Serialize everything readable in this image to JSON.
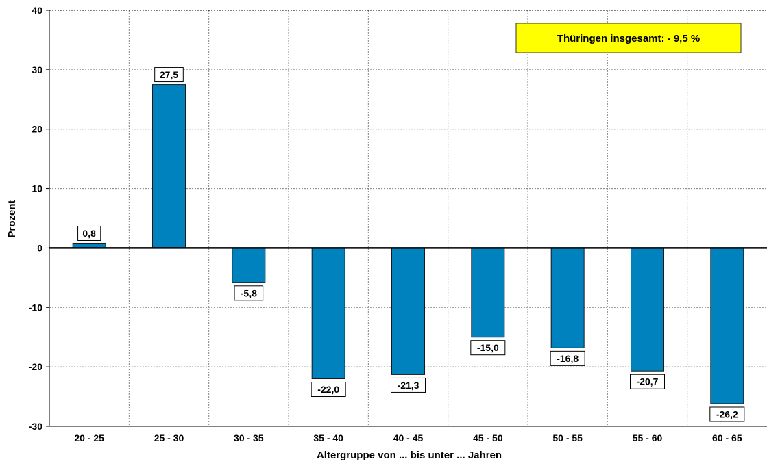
{
  "chart_data": {
    "type": "bar",
    "title": "",
    "xlabel": "Altergruppe von ... bis unter ... Jahren",
    "ylabel": "Prozent",
    "categories": [
      "20 - 25",
      "25 - 30",
      "30 - 35",
      "35 - 40",
      "40 - 45",
      "45 - 50",
      "50 - 55",
      "55 - 60",
      "60 - 65"
    ],
    "values": [
      0.8,
      27.5,
      -5.8,
      -22.0,
      -21.3,
      -15.0,
      -16.8,
      -20.7,
      -26.2
    ],
    "data_labels": [
      "0,8",
      "27,5",
      "-5,8",
      "-22,0",
      "-21,3",
      "-15,0",
      "-16,8",
      "-20,7",
      "-26,2"
    ],
    "ylim": [
      -30,
      40
    ],
    "yticks": [
      40,
      30,
      20,
      10,
      0,
      -10,
      -20,
      -30
    ],
    "ytick_labels": [
      "40",
      "30",
      "20",
      "10",
      "0",
      "-10",
      "-20",
      "-30"
    ],
    "grid": true,
    "annotation": "Thüringen insgesamt:  - 9,5 %"
  },
  "colors": {
    "bar": "#0082BE",
    "bar_outline": "#1A1A1A",
    "callout_bg": "#FFFF00",
    "grid": "#808080"
  }
}
